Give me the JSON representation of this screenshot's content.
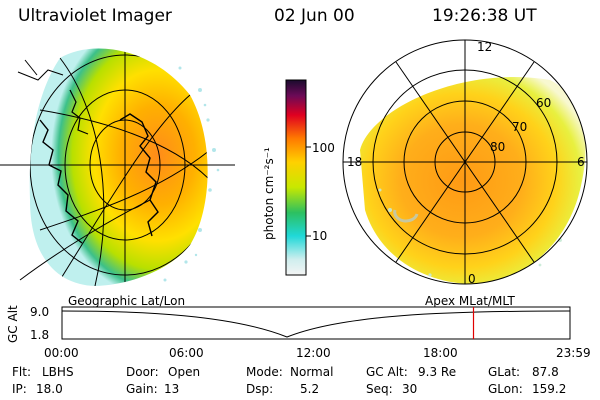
{
  "header": {
    "title": "Ultraviolet Imager",
    "date": "02 Jun 00",
    "time": "19:26:38 UT"
  },
  "colorbar": {
    "unit_label": "photon cm⁻²s⁻¹",
    "ticks": [
      "100",
      "10"
    ]
  },
  "polar_plot": {
    "mlt_labels": {
      "top": "12",
      "left": "18",
      "right": "6",
      "bottom": "0"
    },
    "lat_labels": [
      "60",
      "70",
      "80"
    ]
  },
  "panels": {
    "left_caption": "Geographic Lat/Lon",
    "right_caption": "Apex MLat/MLT"
  },
  "altitude_strip": {
    "axis_label": "GC Alt",
    "y_ticks": [
      "9.0",
      "1.8"
    ],
    "time_ticks": [
      "00:00",
      "06:00",
      "12:00",
      "18:00",
      "23:59"
    ],
    "current_time_fraction": 0.81,
    "marker_color": "#e00000"
  },
  "info": {
    "flt_label": "Flt:",
    "flt_value": "LBHS",
    "door_label": "Door:",
    "door_value": "Open",
    "mode_label": "Mode:",
    "mode_value": "Normal",
    "gcalt_label": "GC Alt:",
    "gcalt_value": "9.3 Re",
    "glat_label": "GLat:",
    "glat_value": "87.8",
    "ip_label": "IP:",
    "ip_value": "18.0",
    "gain_label": "Gain:",
    "gain_value": "13",
    "dsp_label": "Dsp:",
    "dsp_value": "5.2",
    "seq_label": "Seq:",
    "seq_value": "30",
    "glon_label": "GLon:",
    "glon_value": "159.2"
  }
}
